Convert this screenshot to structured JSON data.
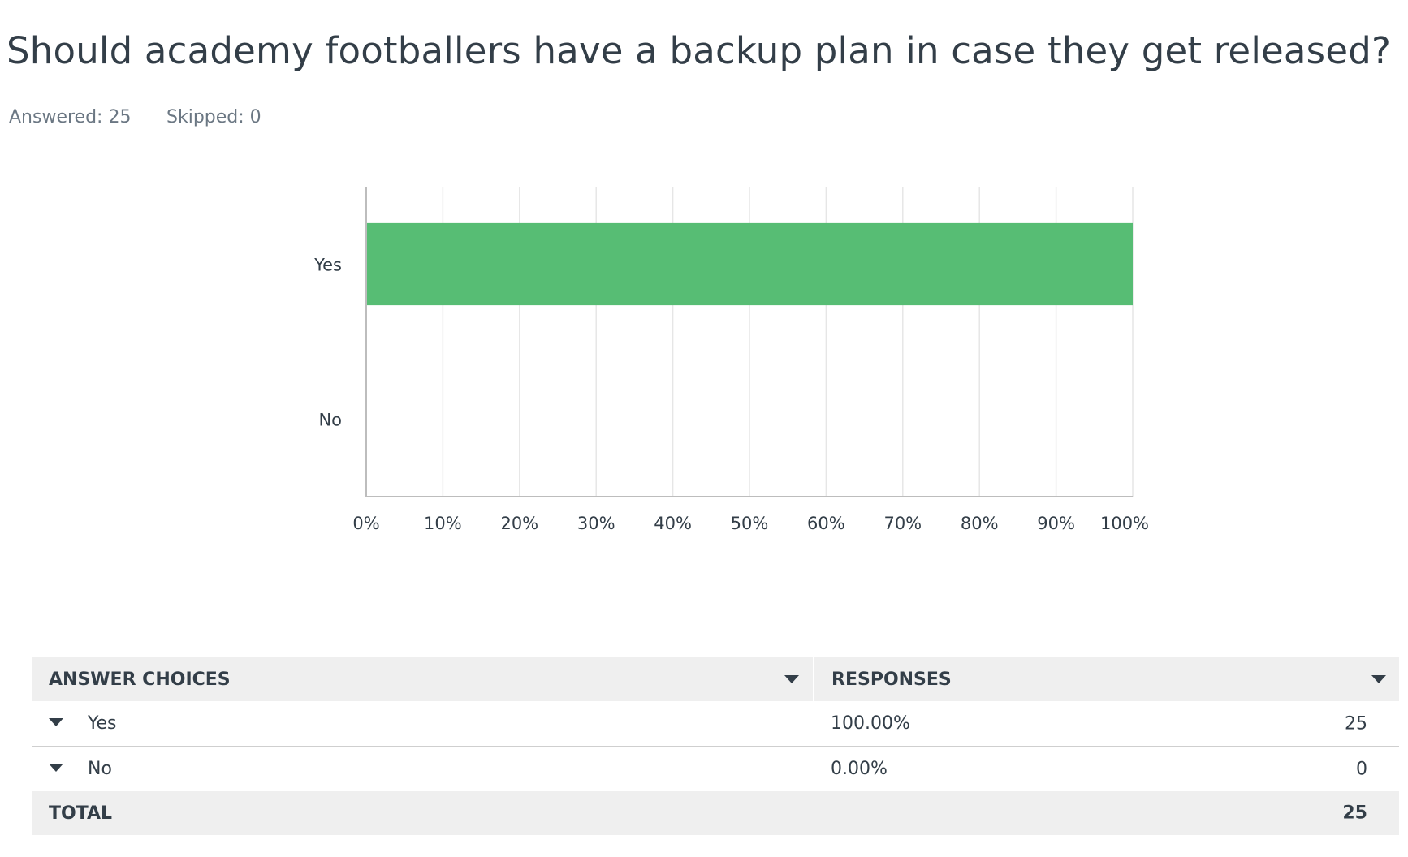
{
  "question": {
    "title": "Should academy footballers have a backup plan in case they get released?",
    "answered": "Answered: 25",
    "skipped": "Skipped: 0"
  },
  "chart_data": {
    "type": "bar",
    "orientation": "horizontal",
    "categories": [
      "Yes",
      "No"
    ],
    "values": [
      100,
      0
    ],
    "xlim": [
      0,
      100
    ],
    "x_ticks": [
      "0%",
      "10%",
      "20%",
      "30%",
      "40%",
      "50%",
      "60%",
      "70%",
      "80%",
      "90%",
      "100%"
    ],
    "grid": true,
    "bar_color": "#57bd74"
  },
  "table": {
    "headers": {
      "choices": "ANSWER CHOICES",
      "responses": "RESPONSES"
    },
    "rows": [
      {
        "choice": "Yes",
        "percent": "100.00%",
        "count": "25"
      },
      {
        "choice": "No",
        "percent": "0.00%",
        "count": "0"
      }
    ],
    "total": {
      "label": "TOTAL",
      "count": "25"
    }
  }
}
